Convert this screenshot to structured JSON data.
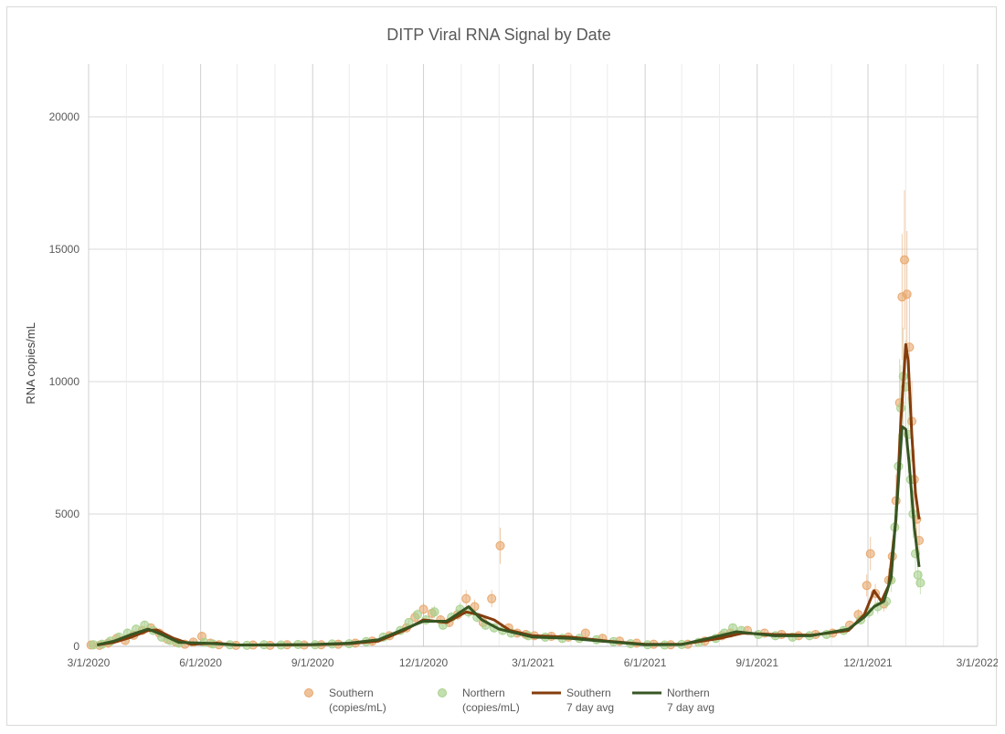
{
  "chart_data": {
    "type": "scatter",
    "title": "DITP Viral RNA Signal by Date",
    "xlabel": "",
    "ylabel": "RNA copies/mL",
    "x_axis_kind": "date",
    "xlim": [
      "2020-03-01",
      "2022-03-01"
    ],
    "ylim": [
      0,
      22000
    ],
    "y_ticks": [
      0,
      5000,
      10000,
      15000,
      20000
    ],
    "x_ticks": [
      "3/1/2020",
      "6/1/2020",
      "9/1/2020",
      "12/1/2020",
      "3/1/2021",
      "6/1/2021",
      "9/1/2021",
      "12/1/2021",
      "3/1/2022"
    ],
    "x_tick_dates": [
      "2020-03-01",
      "2020-06-01",
      "2020-09-01",
      "2020-12-01",
      "2021-03-01",
      "2021-06-01",
      "2021-09-01",
      "2021-12-01",
      "2022-03-01"
    ],
    "grid": true,
    "legend_position": "bottom",
    "series": [
      {
        "name_line1": "Southern",
        "name_line2": "(copies/mL)",
        "kind": "markers",
        "color": "#e8a86e",
        "points": [
          [
            "2020-03-03",
            50
          ],
          [
            "2020-03-10",
            40
          ],
          [
            "2020-03-17",
            120
          ],
          [
            "2020-03-24",
            300
          ],
          [
            "2020-03-31",
            220
          ],
          [
            "2020-04-07",
            420
          ],
          [
            "2020-04-14",
            600
          ],
          [
            "2020-04-21",
            700
          ],
          [
            "2020-04-28",
            500
          ],
          [
            "2020-05-05",
            260
          ],
          [
            "2020-05-12",
            150
          ],
          [
            "2020-05-19",
            80
          ],
          [
            "2020-05-26",
            160
          ],
          [
            "2020-06-02",
            380
          ],
          [
            "2020-06-09",
            120
          ],
          [
            "2020-06-16",
            60
          ],
          [
            "2020-06-30",
            40
          ],
          [
            "2020-07-14",
            50
          ],
          [
            "2020-07-28",
            40
          ],
          [
            "2020-08-11",
            60
          ],
          [
            "2020-08-25",
            50
          ],
          [
            "2020-09-08",
            60
          ],
          [
            "2020-09-22",
            80
          ],
          [
            "2020-10-06",
            120
          ],
          [
            "2020-10-20",
            200
          ],
          [
            "2020-11-03",
            400
          ],
          [
            "2020-11-17",
            700
          ],
          [
            "2020-11-24",
            1100
          ],
          [
            "2020-12-01",
            1400
          ],
          [
            "2020-12-08",
            1250
          ],
          [
            "2020-12-15",
            1000
          ],
          [
            "2020-12-22",
            900
          ],
          [
            "2020-12-29",
            1200
          ],
          [
            "2021-01-05",
            1800
          ],
          [
            "2021-01-12",
            1500
          ],
          [
            "2021-01-19",
            900
          ],
          [
            "2021-01-26",
            1800
          ],
          [
            "2021-02-02",
            3800
          ],
          [
            "2021-02-09",
            700
          ],
          [
            "2021-02-16",
            500
          ],
          [
            "2021-02-23",
            450
          ],
          [
            "2021-03-02",
            400
          ],
          [
            "2021-03-16",
            380
          ],
          [
            "2021-03-30",
            350
          ],
          [
            "2021-04-13",
            500
          ],
          [
            "2021-04-27",
            300
          ],
          [
            "2021-05-11",
            200
          ],
          [
            "2021-05-25",
            120
          ],
          [
            "2021-06-08",
            80
          ],
          [
            "2021-06-22",
            60
          ],
          [
            "2021-07-06",
            80
          ],
          [
            "2021-07-20",
            200
          ],
          [
            "2021-08-03",
            400
          ],
          [
            "2021-08-10",
            500
          ],
          [
            "2021-08-24",
            600
          ],
          [
            "2021-09-07",
            500
          ],
          [
            "2021-09-21",
            450
          ],
          [
            "2021-10-05",
            400
          ],
          [
            "2021-10-19",
            450
          ],
          [
            "2021-11-02",
            500
          ],
          [
            "2021-11-16",
            800
          ],
          [
            "2021-11-23",
            1200
          ],
          [
            "2021-11-30",
            2300
          ],
          [
            "2021-12-03",
            3500
          ],
          [
            "2021-12-07",
            2000
          ],
          [
            "2021-12-14",
            1600
          ],
          [
            "2021-12-18",
            2500
          ],
          [
            "2021-12-21",
            3400
          ],
          [
            "2021-12-24",
            5500
          ],
          [
            "2021-12-27",
            9200
          ],
          [
            "2021-12-29",
            13200
          ],
          [
            "2021-12-31",
            14600
          ],
          [
            "2022-01-02",
            13300
          ],
          [
            "2022-01-04",
            11300
          ],
          [
            "2022-01-06",
            8500
          ],
          [
            "2022-01-08",
            6300
          ],
          [
            "2022-01-10",
            4800
          ],
          [
            "2022-01-12",
            4000
          ]
        ]
      },
      {
        "name_line1": "Northern",
        "name_line2": "(copies/mL)",
        "kind": "markers",
        "color": "#a9d18e",
        "points": [
          [
            "2020-03-05",
            60
          ],
          [
            "2020-03-12",
            80
          ],
          [
            "2020-03-19",
            200
          ],
          [
            "2020-03-26",
            350
          ],
          [
            "2020-04-02",
            500
          ],
          [
            "2020-04-09",
            650
          ],
          [
            "2020-04-16",
            800
          ],
          [
            "2020-04-23",
            600
          ],
          [
            "2020-04-30",
            350
          ],
          [
            "2020-05-07",
            220
          ],
          [
            "2020-05-14",
            120
          ],
          [
            "2020-06-04",
            150
          ],
          [
            "2020-06-11",
            90
          ],
          [
            "2020-06-25",
            60
          ],
          [
            "2020-07-09",
            40
          ],
          [
            "2020-07-23",
            60
          ],
          [
            "2020-08-06",
            50
          ],
          [
            "2020-08-20",
            70
          ],
          [
            "2020-09-03",
            60
          ],
          [
            "2020-09-17",
            90
          ],
          [
            "2020-10-01",
            100
          ],
          [
            "2020-10-15",
            180
          ],
          [
            "2020-10-29",
            350
          ],
          [
            "2020-11-12",
            600
          ],
          [
            "2020-11-19",
            900
          ],
          [
            "2020-11-26",
            1200
          ],
          [
            "2020-12-03",
            1000
          ],
          [
            "2020-12-10",
            1300
          ],
          [
            "2020-12-17",
            800
          ],
          [
            "2020-12-24",
            1100
          ],
          [
            "2020-12-31",
            1400
          ],
          [
            "2021-01-07",
            1300
          ],
          [
            "2021-01-14",
            1100
          ],
          [
            "2021-01-21",
            800
          ],
          [
            "2021-01-28",
            700
          ],
          [
            "2021-02-04",
            600
          ],
          [
            "2021-02-11",
            500
          ],
          [
            "2021-02-25",
            400
          ],
          [
            "2021-03-11",
            350
          ],
          [
            "2021-03-25",
            300
          ],
          [
            "2021-04-08",
            300
          ],
          [
            "2021-04-22",
            250
          ],
          [
            "2021-05-06",
            180
          ],
          [
            "2021-05-20",
            100
          ],
          [
            "2021-06-03",
            60
          ],
          [
            "2021-06-17",
            50
          ],
          [
            "2021-07-01",
            70
          ],
          [
            "2021-07-15",
            150
          ],
          [
            "2021-07-29",
            300
          ],
          [
            "2021-08-05",
            500
          ],
          [
            "2021-08-12",
            700
          ],
          [
            "2021-08-19",
            600
          ],
          [
            "2021-09-02",
            450
          ],
          [
            "2021-09-16",
            400
          ],
          [
            "2021-09-30",
            350
          ],
          [
            "2021-10-14",
            400
          ],
          [
            "2021-10-28",
            450
          ],
          [
            "2021-11-11",
            600
          ],
          [
            "2021-11-25",
            1000
          ],
          [
            "2021-12-02",
            1300
          ],
          [
            "2021-12-09",
            1500
          ],
          [
            "2021-12-16",
            1700
          ],
          [
            "2021-12-20",
            2500
          ],
          [
            "2021-12-23",
            4500
          ],
          [
            "2021-12-26",
            6800
          ],
          [
            "2021-12-28",
            9000
          ],
          [
            "2021-12-30",
            10200
          ],
          [
            "2022-01-01",
            9800
          ],
          [
            "2022-01-03",
            8000
          ],
          [
            "2022-01-05",
            6300
          ],
          [
            "2022-01-07",
            5000
          ],
          [
            "2022-01-09",
            3500
          ],
          [
            "2022-01-11",
            2700
          ],
          [
            "2022-01-13",
            2400
          ]
        ]
      },
      {
        "name_line1": "Southern",
        "name_line2": "7 day avg",
        "kind": "line",
        "color": "#843c0c",
        "points": [
          [
            "2020-03-08",
            50
          ],
          [
            "2020-03-22",
            150
          ],
          [
            "2020-04-05",
            350
          ],
          [
            "2020-04-19",
            600
          ],
          [
            "2020-04-26",
            620
          ],
          [
            "2020-05-10",
            300
          ],
          [
            "2020-05-24",
            80
          ],
          [
            "2020-06-14",
            120
          ],
          [
            "2020-07-01",
            50
          ],
          [
            "2020-08-01",
            50
          ],
          [
            "2020-09-01",
            60
          ],
          [
            "2020-10-01",
            100
          ],
          [
            "2020-10-25",
            200
          ],
          [
            "2020-11-15",
            600
          ],
          [
            "2020-12-01",
            1000
          ],
          [
            "2020-12-20",
            900
          ],
          [
            "2021-01-05",
            1300
          ],
          [
            "2021-01-15",
            1200
          ],
          [
            "2021-01-28",
            1000
          ],
          [
            "2021-02-10",
            600
          ],
          [
            "2021-03-01",
            400
          ],
          [
            "2021-04-01",
            350
          ],
          [
            "2021-05-01",
            200
          ],
          [
            "2021-06-01",
            80
          ],
          [
            "2021-07-01",
            80
          ],
          [
            "2021-08-01",
            300
          ],
          [
            "2021-08-20",
            500
          ],
          [
            "2021-09-15",
            450
          ],
          [
            "2021-10-15",
            420
          ],
          [
            "2021-11-15",
            600
          ],
          [
            "2021-11-28",
            1200
          ],
          [
            "2021-12-06",
            2100
          ],
          [
            "2021-12-12",
            1700
          ],
          [
            "2021-12-18",
            2300
          ],
          [
            "2021-12-24",
            4800
          ],
          [
            "2021-12-28",
            8500
          ],
          [
            "2022-01-01",
            11400
          ],
          [
            "2022-01-03",
            10800
          ],
          [
            "2022-01-06",
            8000
          ],
          [
            "2022-01-09",
            5800
          ],
          [
            "2022-01-12",
            4800
          ]
        ]
      },
      {
        "name_line1": "Northern",
        "name_line2": "7 day avg",
        "kind": "line",
        "color": "#375623",
        "points": [
          [
            "2020-03-08",
            60
          ],
          [
            "2020-03-22",
            200
          ],
          [
            "2020-04-05",
            450
          ],
          [
            "2020-04-19",
            650
          ],
          [
            "2020-04-30",
            450
          ],
          [
            "2020-05-14",
            150
          ],
          [
            "2020-06-05",
            120
          ],
          [
            "2020-07-01",
            50
          ],
          [
            "2020-08-01",
            60
          ],
          [
            "2020-09-01",
            70
          ],
          [
            "2020-10-01",
            120
          ],
          [
            "2020-10-25",
            250
          ],
          [
            "2020-11-15",
            650
          ],
          [
            "2020-12-01",
            950
          ],
          [
            "2020-12-20",
            950
          ],
          [
            "2021-01-07",
            1500
          ],
          [
            "2021-01-18",
            1000
          ],
          [
            "2021-02-01",
            650
          ],
          [
            "2021-03-01",
            350
          ],
          [
            "2021-04-01",
            300
          ],
          [
            "2021-05-01",
            180
          ],
          [
            "2021-06-01",
            60
          ],
          [
            "2021-07-01",
            70
          ],
          [
            "2021-08-01",
            400
          ],
          [
            "2021-08-15",
            550
          ],
          [
            "2021-09-15",
            400
          ],
          [
            "2021-10-15",
            400
          ],
          [
            "2021-11-15",
            650
          ],
          [
            "2021-11-28",
            1100
          ],
          [
            "2021-12-06",
            1500
          ],
          [
            "2021-12-14",
            1700
          ],
          [
            "2021-12-20",
            2600
          ],
          [
            "2021-12-25",
            5500
          ],
          [
            "2021-12-29",
            8300
          ],
          [
            "2022-01-01",
            8200
          ],
          [
            "2022-01-04",
            6800
          ],
          [
            "2022-01-08",
            4500
          ],
          [
            "2022-01-12",
            3000
          ]
        ]
      }
    ]
  }
}
